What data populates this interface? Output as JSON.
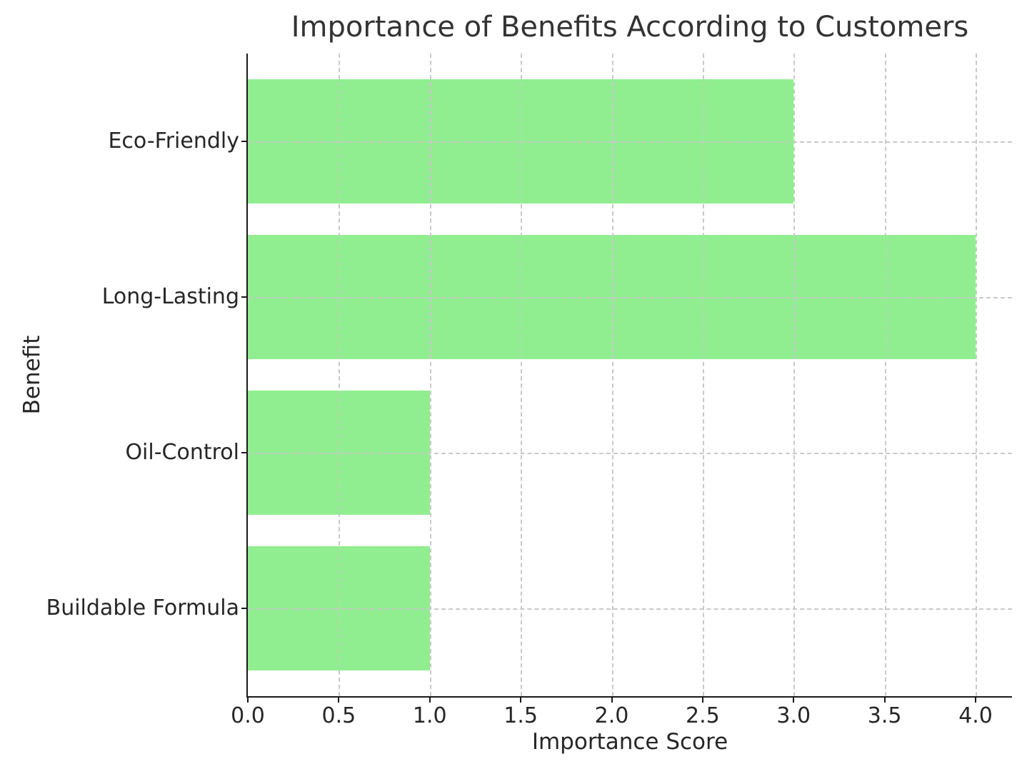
{
  "chart_data": {
    "type": "bar",
    "orientation": "horizontal",
    "title": "Importance of Benefits According to Customers",
    "xlabel": "Importance Score",
    "ylabel": "Benefit",
    "categories": [
      "Eco-Friendly",
      "Long-Lasting",
      "Oil-Control",
      "Buildable Formula"
    ],
    "values": [
      3,
      4,
      1,
      1
    ],
    "xlim": [
      0,
      4.2
    ],
    "xticks": [
      0,
      0.5,
      1,
      1.5,
      2,
      2.5,
      3,
      3.5,
      4
    ],
    "xtick_labels": [
      "0.0",
      "0.5",
      "1.0",
      "1.5",
      "2.0",
      "2.5",
      "3.0",
      "3.5",
      "4.0"
    ],
    "grid": true,
    "grid_style": "dashed",
    "legend": false,
    "colors": {
      "bar": "#90EE90",
      "grid": "#c9c9c9",
      "axis": "#1a1a1a",
      "text": "#262626"
    }
  }
}
